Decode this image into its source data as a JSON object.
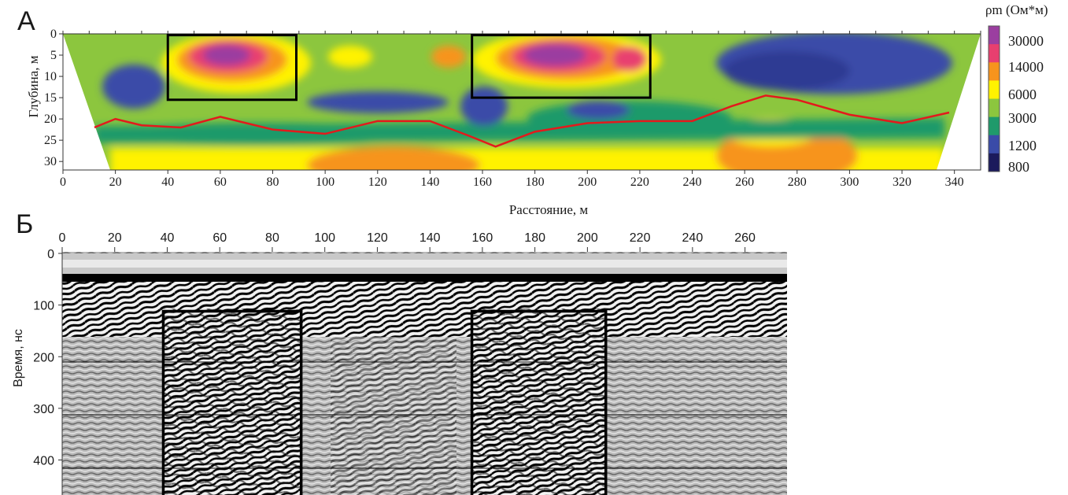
{
  "chart_data": [
    {
      "type": "heatmap",
      "panel_label": "А",
      "xlabel": "Расстояние, м",
      "ylabel": "Глубина, м",
      "xlim": [
        0,
        350
      ],
      "ylim": [
        32,
        0
      ],
      "x_ticks": [
        0,
        20,
        40,
        60,
        80,
        100,
        120,
        140,
        160,
        180,
        200,
        220,
        240,
        260,
        280,
        300,
        320,
        340
      ],
      "y_ticks": [
        0,
        5,
        10,
        15,
        20,
        25,
        30
      ],
      "colorbar": {
        "title": "ρm (Ом*м)",
        "levels": [
          30000,
          14000,
          6000,
          3000,
          1200,
          800
        ],
        "labels": [
          "30000",
          "14000",
          "6000",
          "3000",
          "1200",
          "800"
        ],
        "colors": [
          "#9b3ea0",
          "#e83f6f",
          "#f7941d",
          "#fff200",
          "#8cc63e",
          "#1f9a6b",
          "#3a4ba8",
          "#1b1a5c"
        ]
      },
      "series": [
        {
          "name": "",
          "type": "line",
          "color": "#e31a1c",
          "x": [
            12,
            20,
            30,
            45,
            60,
            80,
            100,
            120,
            140,
            155,
            165,
            180,
            200,
            220,
            240,
            255,
            268,
            280,
            300,
            320,
            338
          ],
          "y": [
            22,
            20,
            21.5,
            22,
            19.5,
            22.5,
            23.5,
            20.5,
            20.5,
            24,
            26.5,
            23,
            21,
            20.5,
            20.5,
            17,
            14.5,
            15.5,
            19,
            21,
            18.5
          ]
        }
      ],
      "highlight_boxes_data_units": [
        {
          "x": [
            40,
            89
          ],
          "y": [
            0.3,
            15.5
          ]
        },
        {
          "x": [
            156,
            224
          ],
          "y": [
            0.3,
            15
          ]
        }
      ]
    },
    {
      "type": "heatmap",
      "panel_label": "Б",
      "xlabel": "",
      "ylabel": "Время, нс",
      "xlim": [
        0,
        276
      ],
      "ylim": [
        480,
        0
      ],
      "x_ticks": [
        0,
        20,
        40,
        60,
        80,
        100,
        120,
        140,
        160,
        180,
        200,
        220,
        240,
        260
      ],
      "y_ticks": [
        0,
        100,
        200,
        300,
        400
      ],
      "highlight_boxes_data_units": [
        {
          "x": [
            38.5,
            91
          ],
          "y": [
            112,
            480
          ]
        },
        {
          "x": [
            156,
            207
          ],
          "y": [
            112,
            480
          ]
        }
      ]
    }
  ]
}
